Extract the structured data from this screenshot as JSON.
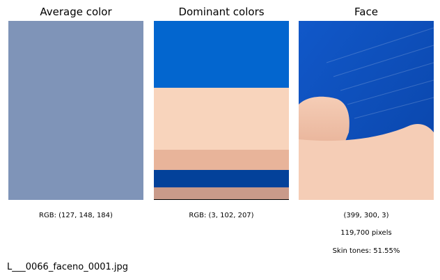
{
  "panels": {
    "average": {
      "title": "Average color",
      "color": "#7f94b8",
      "caption": "RGB: (127, 148, 184)"
    },
    "dominant": {
      "title": "Dominant colors",
      "caption": "RGB: (3, 102, 207)",
      "bands": [
        {
          "color": "#0366cf",
          "fraction": 0.375
        },
        {
          "color": "#f8d4bc",
          "fraction": 0.345
        },
        {
          "color": "#e8b49a",
          "fraction": 0.113
        },
        {
          "color": "#03419a",
          "fraction": 0.097
        },
        {
          "color": "#c99a8a",
          "fraction": 0.07
        }
      ]
    },
    "face": {
      "title": "Face",
      "coords": "(399, 300, 3)",
      "pixels": "119,700 pixels",
      "skin": "Skin tones: 51.55%",
      "colors": {
        "shirt": "#1158c9",
        "shirt_dark": "#0a44a8",
        "skin": "#f5cdb6",
        "skin_shadow": "#e3a88d"
      }
    }
  },
  "filename": "L___0066_faceno_0001.jpg"
}
